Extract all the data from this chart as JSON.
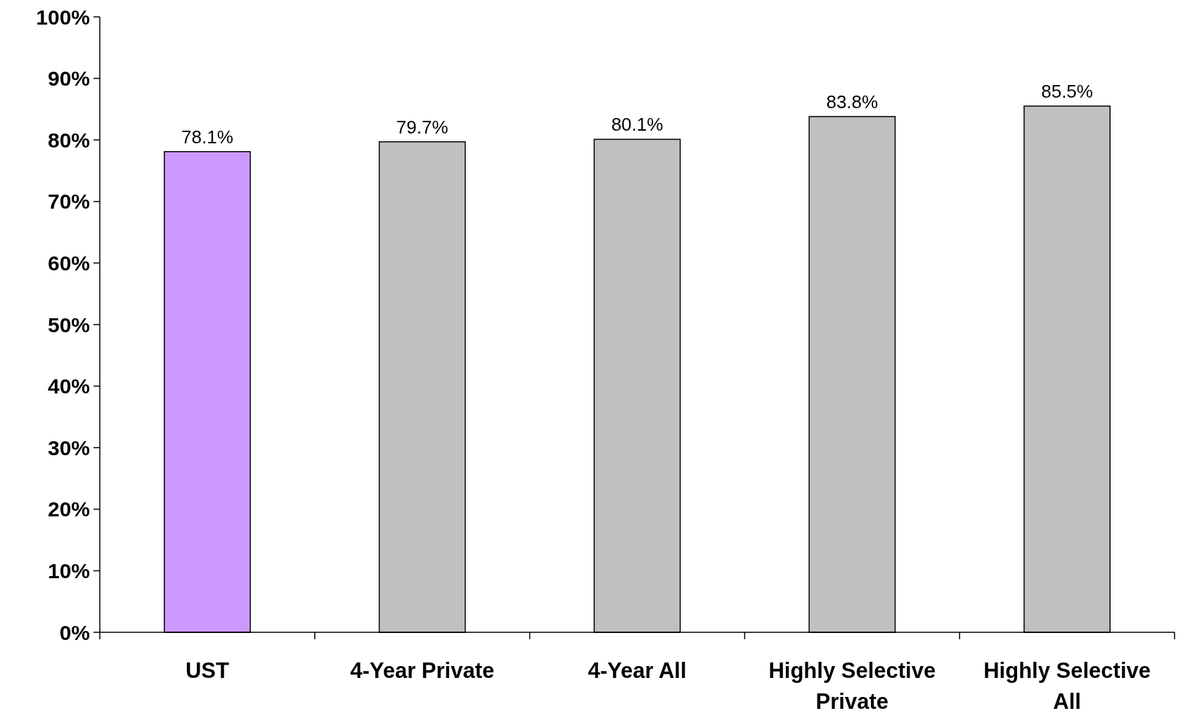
{
  "chart_data": {
    "type": "bar",
    "categories": [
      "UST",
      "4-Year Private",
      "4-Year All",
      "Highly Selective Private",
      "Highly Selective All"
    ],
    "values": [
      78.1,
      79.7,
      80.1,
      83.8,
      85.5
    ],
    "colors": [
      "#cc99ff",
      "#c0c0c0",
      "#c0c0c0",
      "#c0c0c0",
      "#c0c0c0"
    ],
    "value_labels": [
      "78.1%",
      "79.7%",
      "80.1%",
      "83.8%",
      "85.5%"
    ],
    "ylim": [
      0,
      100
    ],
    "yticks": [
      {
        "value": 0,
        "label": "0%"
      },
      {
        "value": 10,
        "label": "10%"
      },
      {
        "value": 20,
        "label": "20%"
      },
      {
        "value": 30,
        "label": "30%"
      },
      {
        "value": 40,
        "label": "40%"
      },
      {
        "value": 50,
        "label": "50%"
      },
      {
        "value": 60,
        "label": "60%"
      },
      {
        "value": 70,
        "label": "70%"
      },
      {
        "value": 80,
        "label": "80%"
      },
      {
        "value": 90,
        "label": "90%"
      },
      {
        "value": 100,
        "label": "100%"
      }
    ],
    "grid": false
  }
}
